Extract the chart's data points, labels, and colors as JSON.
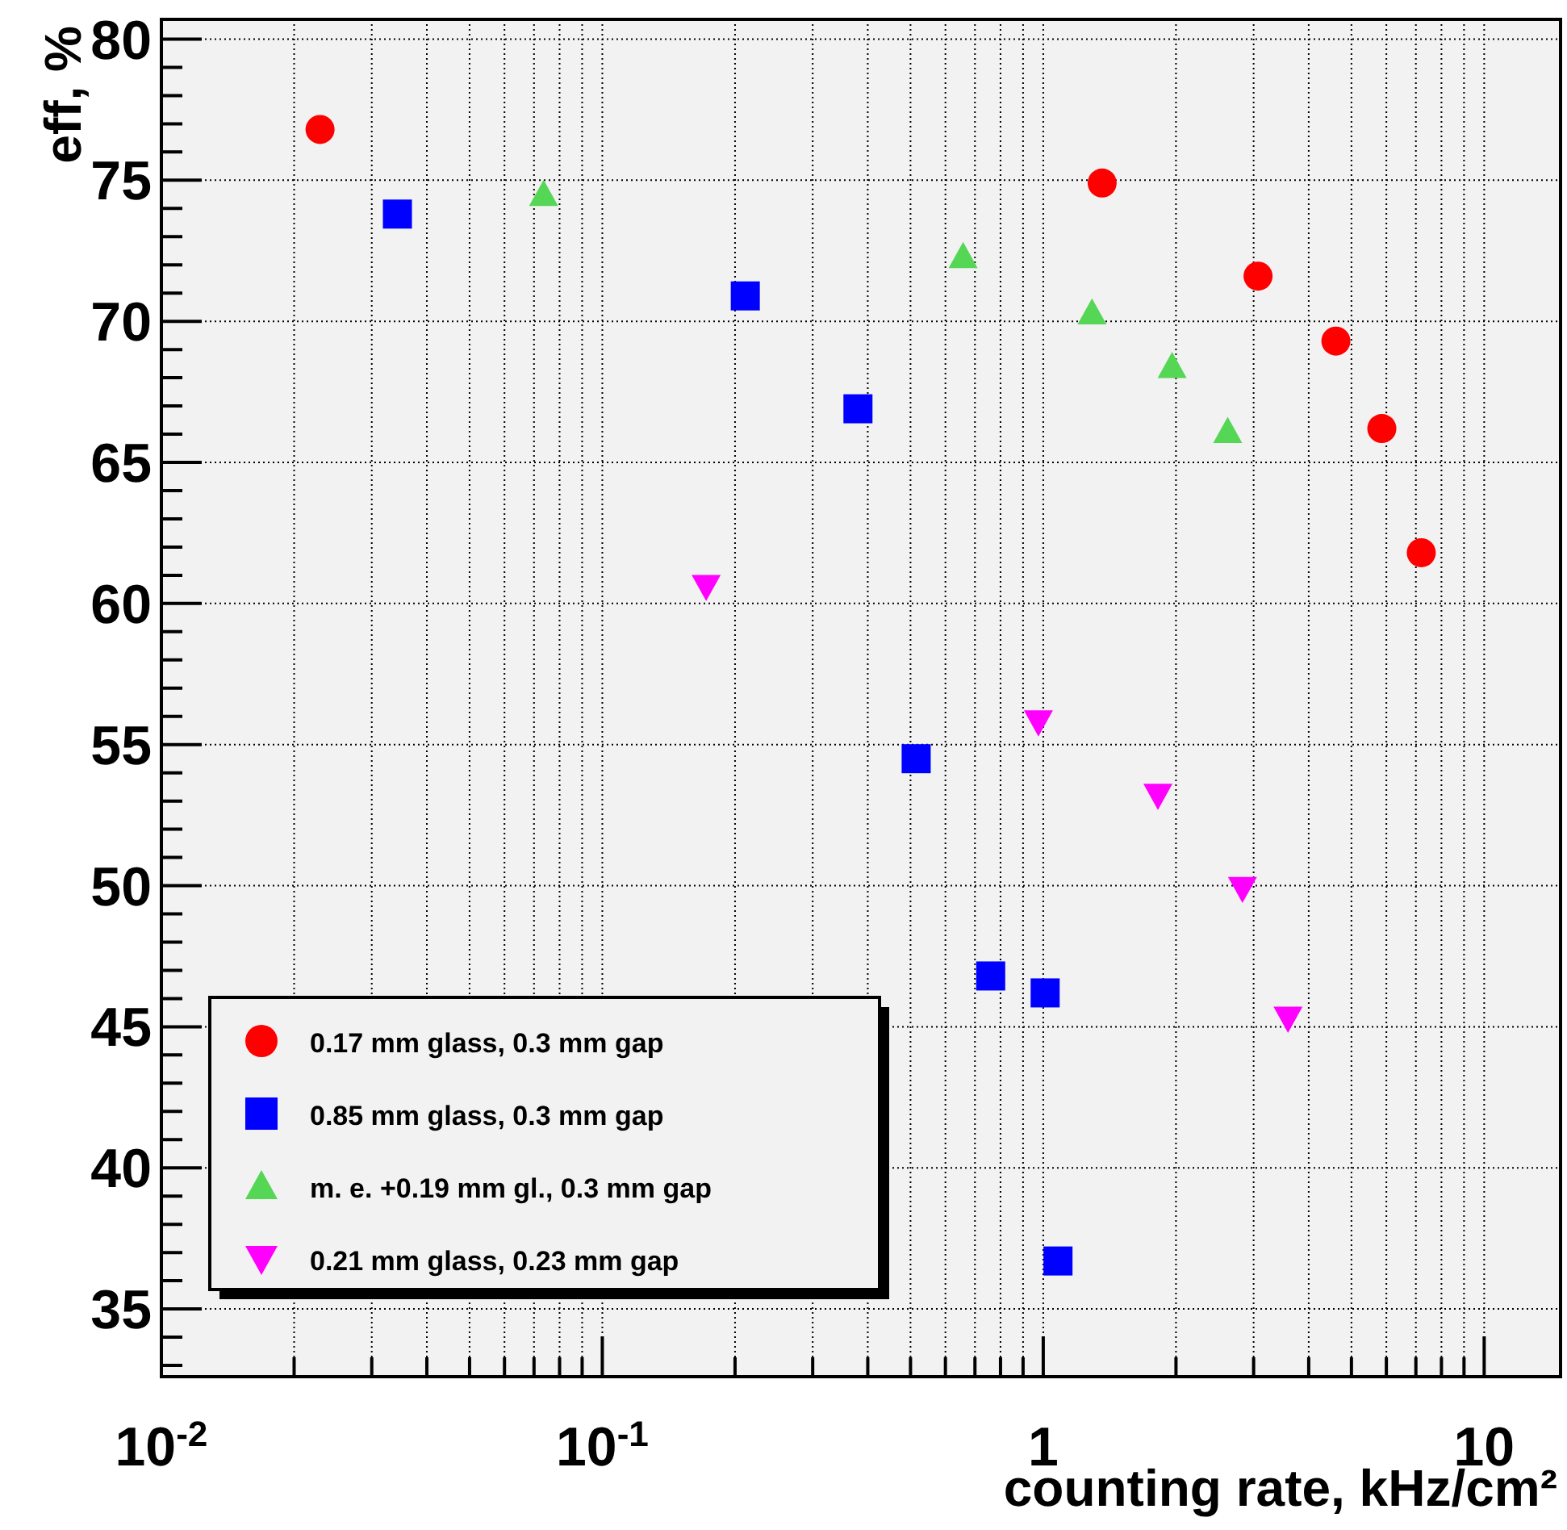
{
  "chart_data": {
    "type": "scatter",
    "xlabel": "counting rate, kHz/cm²",
    "ylabel": "eff, %",
    "log": "x",
    "grid": true,
    "legend": "bottom left",
    "xlim": [
      0.01,
      14.9
    ],
    "ylim": [
      32.6,
      80.7
    ],
    "xticks": [
      {
        "value": 0.01,
        "label": "10$^{-2}$"
      },
      {
        "value": 0.1,
        "label": "10$^{-1}$"
      },
      1,
      10
    ],
    "yticks": [
      35,
      40,
      45,
      50,
      55,
      60,
      65,
      70,
      75,
      80
    ],
    "series": [
      {
        "name": "0.17 mm glass, 0.3 mm gap",
        "color": "#ff0000",
        "marker": "circle",
        "x": [
          0.0229,
          1.36,
          3.07,
          4.61,
          5.86,
          7.2
        ],
        "values": [
          76.8,
          74.9,
          71.6,
          69.3,
          66.2,
          61.8
        ]
      },
      {
        "name": "0.85 mm glass, 0.3 mm gap",
        "color": "#0000ff",
        "marker": "square",
        "x": [
          0.0343,
          0.211,
          0.38,
          0.515,
          0.76,
          1.01,
          1.08
        ],
        "values": [
          73.8,
          70.9,
          66.9,
          54.5,
          46.8,
          46.2,
          36.7
        ]
      },
      {
        "name": "m. e. +0.19 mm gl., 0.3 mm gap",
        "color": "#55d655",
        "marker": "triangle",
        "x": [
          0.0736,
          0.658,
          1.29,
          1.96,
          2.62
        ],
        "values": [
          74.5,
          72.3,
          70.3,
          68.4,
          66.1
        ]
      },
      {
        "name": "0.21 mm glass, 0.23 mm gap",
        "color": "#ff00ff",
        "marker": "triangle-down",
        "x": [
          0.172,
          0.975,
          1.82,
          2.83,
          3.59
        ],
        "values": [
          60.6,
          55.8,
          53.2,
          49.9,
          45.3
        ]
      }
    ]
  }
}
